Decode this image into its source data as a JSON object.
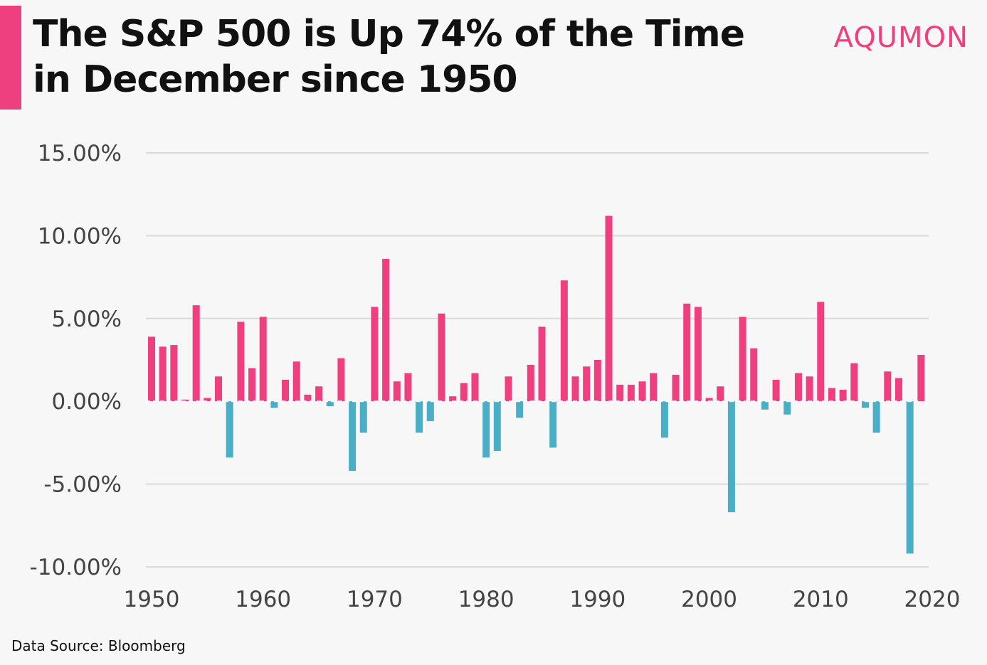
{
  "header": {
    "title": "The S&P 500 is Up 74% of the Time in December since 1950",
    "brand": "AQUMON",
    "source": "Data Source: Bloomberg"
  },
  "colors": {
    "positive": "#ef3f7f",
    "negative": "#4aafc6",
    "accent": "#ee3f7e",
    "brand": "#ee3f7e",
    "grid": "#d9d9d9"
  },
  "chart_data": {
    "type": "bar",
    "title": "The S&P 500 is Up 74% of the Time in December since 1950",
    "xlabel": "",
    "ylabel": "",
    "grid": true,
    "legend": "none",
    "ylim": [
      -10.0,
      15.0
    ],
    "xlim": [
      1950,
      2020
    ],
    "yticks": [
      15,
      10,
      5,
      0,
      -5,
      -10
    ],
    "ytick_labels": [
      "15.00%",
      "10.00%",
      "5.00%",
      "0.00%",
      "-5.00%",
      "-10.00%"
    ],
    "xticks": [
      1950,
      1960,
      1970,
      1980,
      1990,
      2000,
      2010,
      2020
    ],
    "xtick_labels": [
      "1950",
      "1960",
      "1970",
      "1980",
      "1990",
      "2000",
      "2010",
      "2020"
    ],
    "x": [
      1950,
      1951,
      1952,
      1953,
      1954,
      1955,
      1956,
      1957,
      1958,
      1959,
      1960,
      1961,
      1962,
      1963,
      1964,
      1965,
      1966,
      1967,
      1968,
      1969,
      1970,
      1971,
      1972,
      1973,
      1974,
      1975,
      1976,
      1977,
      1978,
      1979,
      1980,
      1981,
      1982,
      1983,
      1984,
      1985,
      1986,
      1987,
      1988,
      1989,
      1990,
      1991,
      1992,
      1993,
      1994,
      1995,
      1996,
      1997,
      1998,
      1999,
      2000,
      2001,
      2002,
      2003,
      2004,
      2005,
      2006,
      2007,
      2008,
      2009,
      2010,
      2011,
      2012,
      2013,
      2014,
      2015,
      2016,
      2017,
      2018,
      2019
    ],
    "values": [
      3.9,
      3.3,
      3.4,
      0.1,
      5.8,
      0.2,
      1.5,
      -3.4,
      4.8,
      2.0,
      5.1,
      -0.4,
      1.3,
      2.4,
      0.4,
      0.9,
      -0.3,
      2.6,
      -4.2,
      -1.9,
      5.7,
      8.6,
      1.2,
      1.7,
      -1.9,
      -1.2,
      5.3,
      0.3,
      1.1,
      1.7,
      -3.4,
      -3.0,
      1.5,
      -1.0,
      2.2,
      4.5,
      -2.8,
      7.3,
      1.5,
      2.1,
      2.5,
      11.2,
      1.0,
      1.0,
      1.2,
      1.7,
      -2.2,
      1.6,
      5.9,
      5.7,
      0.2,
      0.9,
      -6.7,
      5.1,
      3.2,
      -0.5,
      1.3,
      -0.8,
      1.7,
      1.5,
      6.0,
      0.8,
      0.7,
      2.3,
      -0.4,
      -1.9,
      1.8,
      1.4,
      -9.2,
      2.8
    ]
  }
}
